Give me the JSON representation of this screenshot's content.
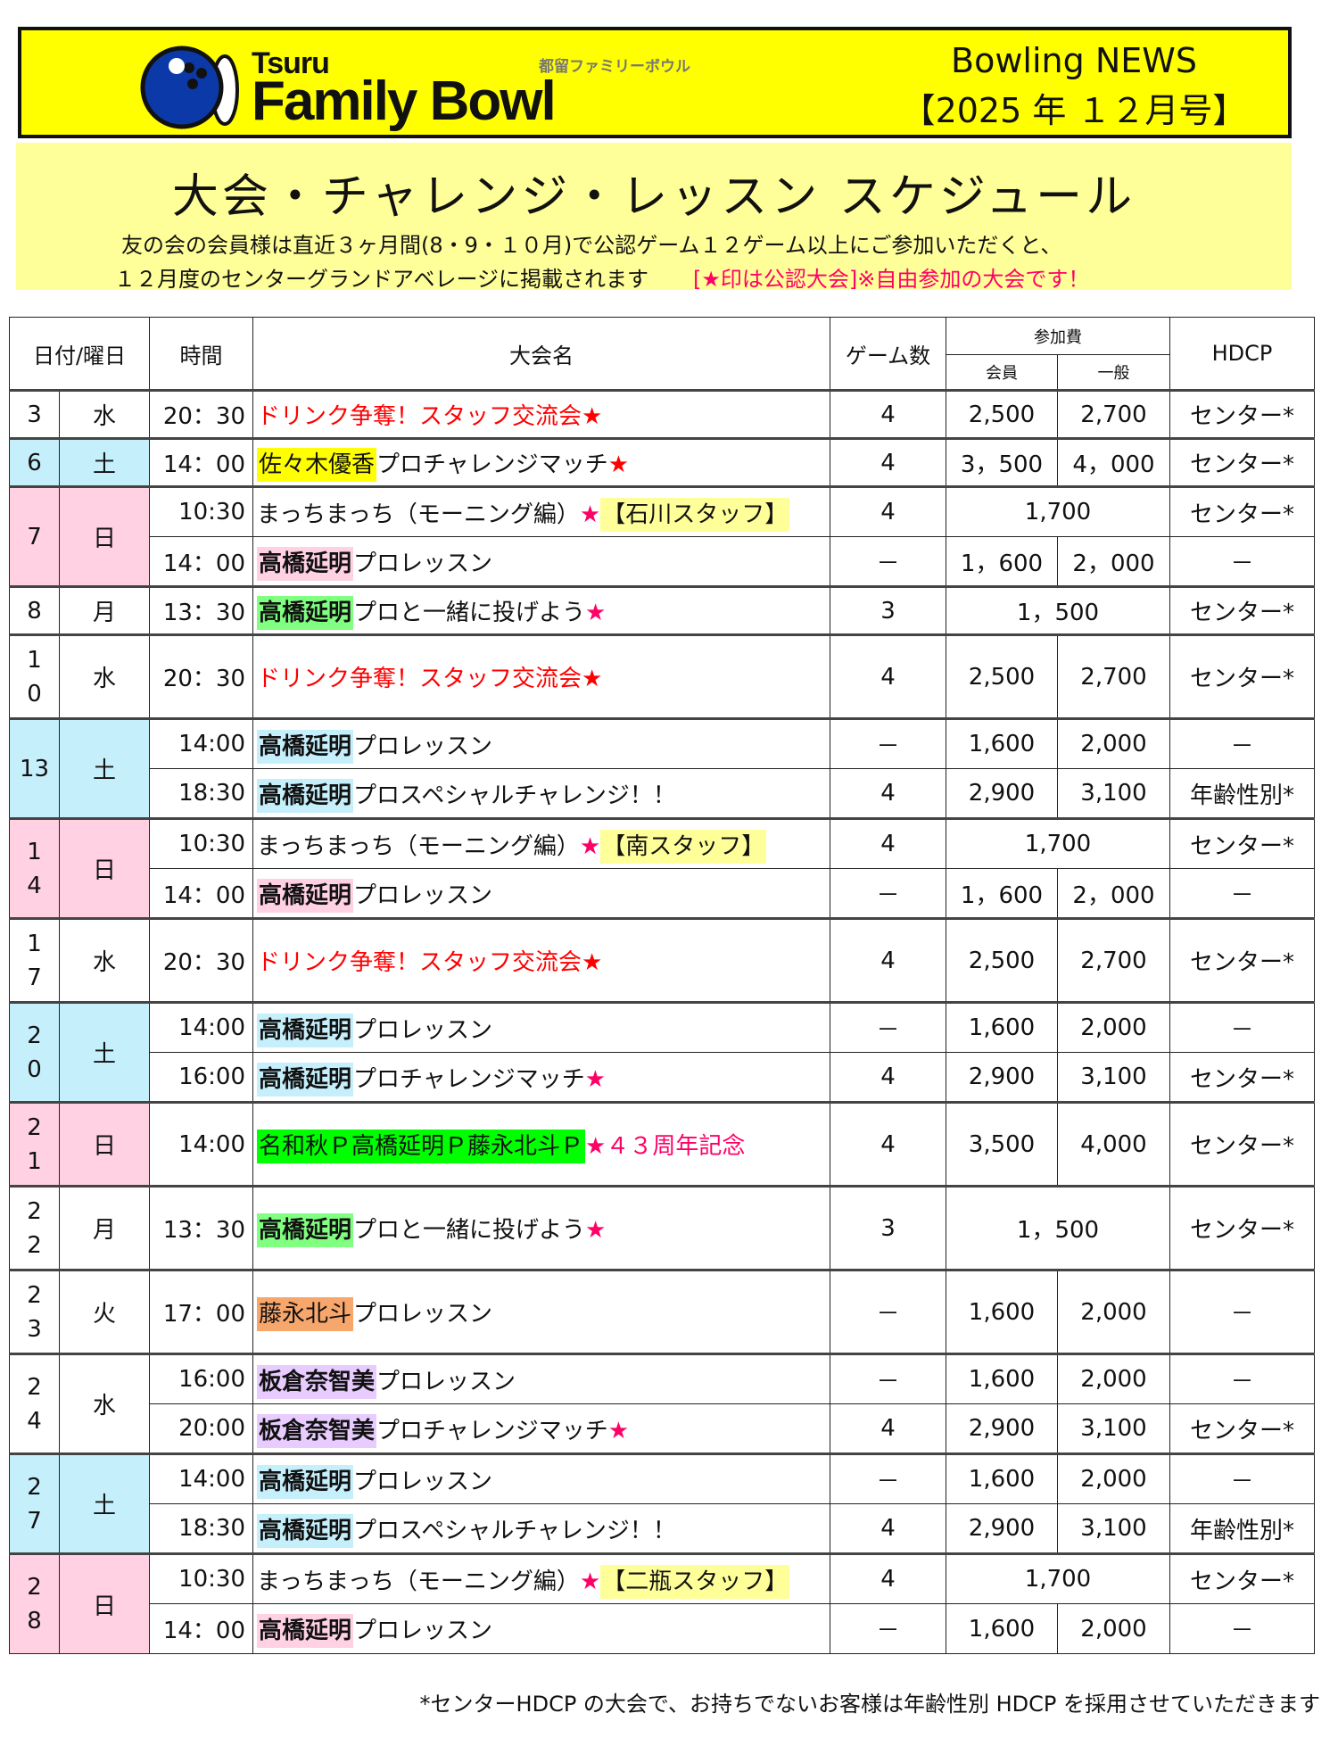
{
  "header": {
    "logo_small": "Tsuru",
    "logo_main": "Family Bowl",
    "logo_jp": "都留ファミリーボウル",
    "news": "Bowling NEWS",
    "issue": "【2025 年 １２月号】"
  },
  "band": {
    "title": "大会・チャレンジ・レッスン スケジュール",
    "line1": "友の会の会員様は直近３ヶ月間(8・9・１０月)で公認ゲーム１２ゲーム以上にご参加いただくと、",
    "line2": "１２月度のセンターグランドアベレージに掲載されます",
    "note": "[★印は公認大会]※自由参加の大会です！"
  },
  "table_header": {
    "date": "日付/曜日",
    "time": "時間",
    "name": "大会名",
    "games": "ゲーム数",
    "fee": "参加費",
    "member": "会員",
    "general": "一般",
    "hdcp": "HDCP"
  },
  "colors": {
    "blue_day": "#c6effc",
    "pink_day": "#ffd1e3",
    "red": "#ff0000",
    "pink_text": "#ff0066"
  },
  "days": [
    {
      "date": "3",
      "wd": "水",
      "color": "",
      "events": [
        {
          "time": "20：30",
          "name": [
            {
              "text": "ドリンク争奪！スタッフ交流会",
              "color": "#ff0000"
            },
            {
              "text": "★",
              "color": "#ff0000"
            }
          ],
          "games": "4",
          "member": "2,500",
          "general": "2,700",
          "hdcp": "センター*"
        }
      ]
    },
    {
      "date": "6",
      "wd": "土",
      "color": "#c6effc",
      "events": [
        {
          "time": "14：00",
          "name": [
            {
              "text": "佐々木優香",
              "bg": "#ffff00"
            },
            {
              "text": "プロチャレンジマッチ"
            },
            {
              "text": "★",
              "color": "#ff0000"
            }
          ],
          "games": "4",
          "member": "3，500",
          "general": "4，000",
          "hdcp": "センター*"
        }
      ]
    },
    {
      "date": "7",
      "wd": "日",
      "color": "#ffd1e3",
      "events": [
        {
          "time": "10:30",
          "name": [
            {
              "text": "まっちまっち（モーニング編）"
            },
            {
              "text": "★",
              "color": "#ff0066"
            },
            {
              "text": "【石川スタッフ】",
              "bg": "#ffff99"
            }
          ],
          "games": "4",
          "fee": "1,700",
          "hdcp": "センター*"
        },
        {
          "time": "14：00",
          "name": [
            {
              "text": "高橋延明",
              "bg": "#ffd1e3",
              "bold": true
            },
            {
              "text": "プロレッスン"
            }
          ],
          "games": "－",
          "member": "1，600",
          "general": "2，000",
          "hdcp": "－"
        }
      ]
    },
    {
      "date": "8",
      "wd": "月",
      "color": "",
      "events": [
        {
          "time": "13：30",
          "name": [
            {
              "text": "高橋延明",
              "bg": "#80ff80",
              "bold": true
            },
            {
              "text": "プロと一緒に投げよう"
            },
            {
              "text": "★",
              "color": "#ff0066"
            }
          ],
          "games": "3",
          "fee": "1，500",
          "hdcp": "センター*"
        }
      ]
    },
    {
      "date": "1\n0",
      "wd": "水",
      "color": "",
      "tall": true,
      "events": [
        {
          "time": "20：30",
          "name": [
            {
              "text": "ドリンク争奪！スタッフ交流会",
              "color": "#ff0000"
            },
            {
              "text": "★",
              "color": "#ff0000"
            }
          ],
          "games": "4",
          "member": "2,500",
          "general": "2,700",
          "hdcp": "センター*"
        }
      ]
    },
    {
      "date": "13",
      "wd": "土",
      "color": "#c6effc",
      "events": [
        {
          "time": "14:00",
          "name": [
            {
              "text": "高橋延明",
              "bg": "#c6effc",
              "bold": true
            },
            {
              "text": "プロレッスン"
            }
          ],
          "games": "－",
          "member": "1,600",
          "general": "2,000",
          "hdcp": "－"
        },
        {
          "time": "18:30",
          "name": [
            {
              "text": "高橋延明",
              "bg": "#c6effc",
              "bold": true
            },
            {
              "text": "プロスペシャルチャレンジ！！"
            }
          ],
          "games": "4",
          "member": "2,900",
          "general": "3,100",
          "hdcp": "年齢性別*"
        }
      ]
    },
    {
      "date": "1\n4",
      "wd": "日",
      "color": "#ffd1e3",
      "events": [
        {
          "time": "10:30",
          "name": [
            {
              "text": "まっちまっち（モーニング編）"
            },
            {
              "text": "★",
              "color": "#ff0066"
            },
            {
              "text": "【南スタッフ】",
              "bg": "#ffff99"
            }
          ],
          "games": "4",
          "fee": "1,700",
          "hdcp": "センター*"
        },
        {
          "time": "14：00",
          "name": [
            {
              "text": "高橋延明",
              "bg": "#ffd1e3",
              "bold": true
            },
            {
              "text": "プロレッスン"
            }
          ],
          "games": "－",
          "member": "1，600",
          "general": "2，000",
          "hdcp": "－"
        }
      ]
    },
    {
      "date": "1\n7",
      "wd": "水",
      "color": "",
      "tall": true,
      "events": [
        {
          "time": "20：30",
          "name": [
            {
              "text": "ドリンク争奪！スタッフ交流会",
              "color": "#ff0000"
            },
            {
              "text": "★",
              "color": "#ff0000"
            }
          ],
          "games": "4",
          "member": "2,500",
          "general": "2,700",
          "hdcp": "センター*"
        }
      ]
    },
    {
      "date": "2\n0",
      "wd": "土",
      "color": "#c6effc",
      "events": [
        {
          "time": "14:00",
          "name": [
            {
              "text": "高橋延明",
              "bg": "#c6effc",
              "bold": true
            },
            {
              "text": "プロレッスン"
            }
          ],
          "games": "－",
          "member": "1,600",
          "general": "2,000",
          "hdcp": "－"
        },
        {
          "time": "16:00",
          "name": [
            {
              "text": "高橋延明",
              "bg": "#c6effc",
              "bold": true
            },
            {
              "text": "プロチャレンジマッチ"
            },
            {
              "text": "★",
              "color": "#ff0066"
            }
          ],
          "games": "4",
          "member": "2,900",
          "general": "3,100",
          "hdcp": "センター*"
        }
      ]
    },
    {
      "date": "2\n1",
      "wd": "日",
      "color": "#ffd1e3",
      "tall": true,
      "events": [
        {
          "time": "14:00",
          "name": [
            {
              "text": "名和秋Ｐ高橋延明Ｐ藤永北斗Ｐ",
              "bg": "#00ff00"
            },
            {
              "text": "★",
              "color": "#ff0066"
            },
            {
              "text": "４３周年記念",
              "color": "#ff0066"
            }
          ],
          "games": "4",
          "member": "3,500",
          "general": "4,000",
          "hdcp": "センター*"
        }
      ]
    },
    {
      "date": "2\n2",
      "wd": "月",
      "color": "",
      "tall": true,
      "events": [
        {
          "time": "13：30",
          "name": [
            {
              "text": "高橋延明",
              "bg": "#80ff80",
              "bold": true
            },
            {
              "text": "プロと一緒に投げよう"
            },
            {
              "text": "★",
              "color": "#ff0066"
            }
          ],
          "games": "3",
          "fee": "1，500",
          "hdcp": "センター*"
        }
      ]
    },
    {
      "date": "2\n3",
      "wd": "火",
      "color": "",
      "tall": true,
      "events": [
        {
          "time": "17：00",
          "name": [
            {
              "text": "藤永北斗",
              "bg": "#f8a76c"
            },
            {
              "text": "プロレッスン"
            }
          ],
          "games": "－",
          "member": "1,600",
          "general": "2,000",
          "hdcp": "－"
        }
      ]
    },
    {
      "date": "2\n4",
      "wd": "水",
      "color": "",
      "events": [
        {
          "time": "16:00",
          "name": [
            {
              "text": "板倉奈智美",
              "bg": "#e8ccff",
              "bold": true
            },
            {
              "text": "プロレッスン"
            }
          ],
          "games": "－",
          "member": "1,600",
          "general": "2,000",
          "hdcp": "－"
        },
        {
          "time": "20:00",
          "name": [
            {
              "text": "板倉奈智美",
              "bg": "#e8ccff",
              "bold": true
            },
            {
              "text": "プロチャレンジマッチ"
            },
            {
              "text": "★",
              "color": "#ff0066"
            }
          ],
          "games": "4",
          "member": "2,900",
          "general": "3,100",
          "hdcp": "センター*"
        }
      ]
    },
    {
      "date": "2\n7",
      "wd": "土",
      "color": "#c6effc",
      "events": [
        {
          "time": "14:00",
          "name": [
            {
              "text": "高橋延明",
              "bg": "#c6effc",
              "bold": true
            },
            {
              "text": "プロレッスン"
            }
          ],
          "games": "－",
          "member": "1,600",
          "general": "2,000",
          "hdcp": "－"
        },
        {
          "time": "18:30",
          "name": [
            {
              "text": "高橋延明",
              "bg": "#c6effc",
              "bold": true
            },
            {
              "text": "プロスペシャルチャレンジ！！"
            }
          ],
          "games": "4",
          "member": "2,900",
          "general": "3,100",
          "hdcp": "年齢性別*"
        }
      ]
    },
    {
      "date": "2\n8",
      "wd": "日",
      "color": "#ffd1e3",
      "events": [
        {
          "time": "10:30",
          "name": [
            {
              "text": "まっちまっち（モーニング編）"
            },
            {
              "text": "★",
              "color": "#ff0066"
            },
            {
              "text": "【二瓶スタッフ】",
              "bg": "#ffff99"
            }
          ],
          "games": "4",
          "fee": "1,700",
          "hdcp": "センター*"
        },
        {
          "time": "14：00",
          "name": [
            {
              "text": "高橋延明",
              "bg": "#ffd1e3",
              "bold": true
            },
            {
              "text": "プロレッスン"
            }
          ],
          "games": "－",
          "member": "1,600",
          "general": "2,000",
          "hdcp": "－"
        }
      ]
    }
  ],
  "footer": "*センターHDCP の大会で、お持ちでないお客様は年齢性別 HDCP を採用させていただきます"
}
